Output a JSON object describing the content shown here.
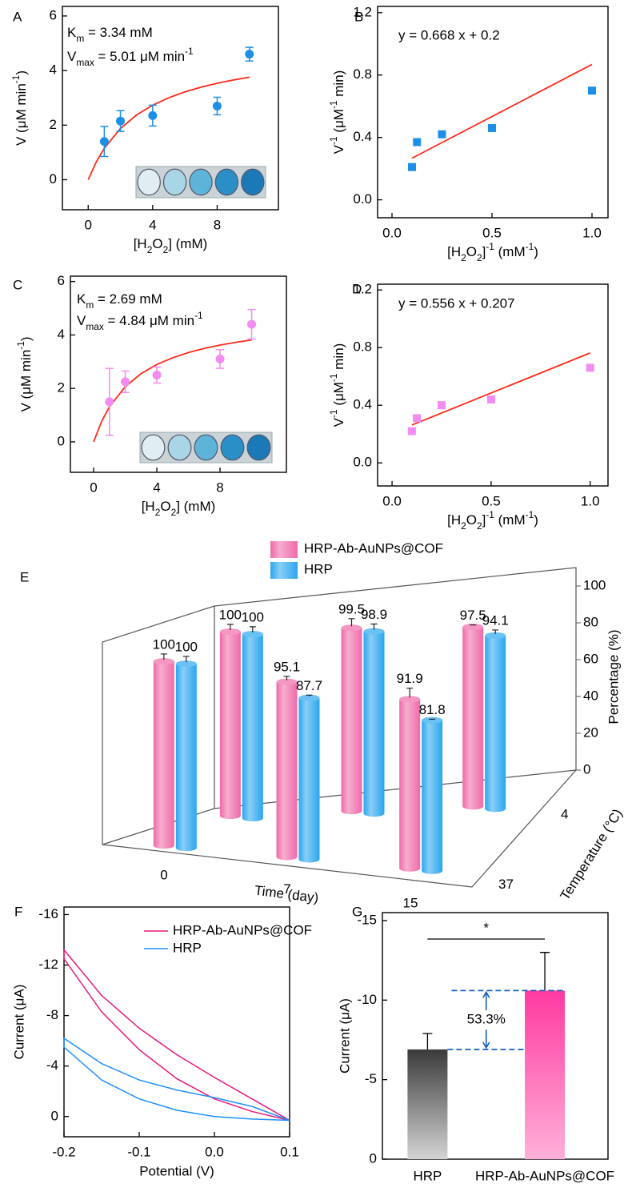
{
  "chart_data": [
    {
      "type": "scatter",
      "label": "A",
      "xlabel": [
        {
          "text": "[H"
        },
        {
          "text": "2",
          "style": "sub"
        },
        {
          "text": "O"
        },
        {
          "text": "2",
          "style": "sub"
        },
        {
          "text": "] (mM)"
        }
      ],
      "ylabel": [
        {
          "text": "V (μM min"
        },
        {
          "text": "-1",
          "style": "sup"
        },
        {
          "text": ")"
        }
      ],
      "annotations": [
        [
          {
            "text": "K"
          },
          {
            "text": "m",
            "style": "sub"
          },
          {
            "text": " = 3.34 mM"
          }
        ],
        [
          {
            "text": "V"
          },
          {
            "text": "max",
            "style": "sub"
          },
          {
            "text": " = 5.01 μM min"
          },
          {
            "text": "-1",
            "style": "sup"
          }
        ]
      ],
      "x": [
        1,
        2,
        4,
        8,
        10
      ],
      "series": [
        {
          "color": "#1e8fe6",
          "marker": "circle",
          "values": [
            1.4,
            2.15,
            2.35,
            2.7,
            4.6
          ],
          "errors": [
            0.55,
            0.38,
            0.38,
            0.32,
            0.25
          ]
        }
      ],
      "fit": {
        "color": "#ff2a1a",
        "x": [
          0,
          0.5,
          1,
          2,
          3,
          4,
          5,
          6,
          7,
          8,
          9,
          10
        ],
        "values": [
          0,
          0.652,
          1.154,
          1.876,
          2.371,
          2.73,
          3.004,
          3.218,
          3.392,
          3.534,
          3.654,
          3.756
        ]
      },
      "xlim": [
        -1.6,
        11.8
      ],
      "ylim": [
        -1.1,
        6.35
      ],
      "xticks": [
        0,
        4,
        8
      ],
      "yticks": [
        0,
        2,
        4,
        6
      ]
    },
    {
      "type": "scatter",
      "label": "B",
      "xlabel": [
        {
          "text": "[H"
        },
        {
          "text": "2",
          "style": "sub"
        },
        {
          "text": "O"
        },
        {
          "text": "2",
          "style": "sub"
        },
        {
          "text": "]"
        },
        {
          "text": "-1",
          "style": "sup"
        },
        {
          "text": " (mM"
        },
        {
          "text": "-1",
          "style": "sup"
        },
        {
          "text": ")"
        }
      ],
      "ylabel": [
        {
          "text": "V"
        },
        {
          "text": "-1",
          "style": "sup"
        },
        {
          "text": " (μM"
        },
        {
          "text": "-1",
          "style": "sup"
        },
        {
          "text": " min)"
        }
      ],
      "annotations": [
        "y = 0.668 x + 0.2"
      ],
      "x": [
        0.1,
        0.125,
        0.25,
        0.5,
        1
      ],
      "series": [
        {
          "color": "#1e8fe6",
          "marker": "square",
          "values": [
            0.21,
            0.37,
            0.42,
            0.46,
            0.7
          ]
        }
      ],
      "fit": {
        "color": "#ff2a1a",
        "x": [
          0.1,
          1
        ],
        "values": [
          0.2668,
          0.868
        ]
      },
      "xlim": [
        -0.072,
        1.08
      ],
      "ylim": [
        -0.115,
        1.24
      ],
      "xticks": [
        {
          "value": 0,
          "label": "0.0"
        },
        0.5,
        {
          "value": 1,
          "label": "1.0"
        }
      ],
      "yticks": [
        {
          "value": 0,
          "label": "0.0"
        },
        0.4,
        0.8,
        1.2
      ]
    },
    {
      "type": "scatter",
      "label": "C",
      "xlabel": [
        {
          "text": "[H"
        },
        {
          "text": "2",
          "style": "sub"
        },
        {
          "text": "O"
        },
        {
          "text": "2",
          "style": "sub"
        },
        {
          "text": "] (mM)"
        }
      ],
      "ylabel": [
        {
          "text": "V (μM min"
        },
        {
          "text": "-1",
          "style": "sup"
        },
        {
          "text": ")"
        }
      ],
      "annotations": [
        [
          {
            "text": "K"
          },
          {
            "text": "m",
            "style": "sub"
          },
          {
            "text": " = 2.69 mM"
          }
        ],
        [
          {
            "text": "V"
          },
          {
            "text": "max",
            "style": "sub"
          },
          {
            "text": " = 4.84 μM min"
          },
          {
            "text": "-1",
            "style": "sup"
          }
        ]
      ],
      "x": [
        1,
        2,
        4,
        8,
        10
      ],
      "series": [
        {
          "color": "#f28cf0",
          "marker": "circle",
          "values": [
            1.5,
            2.25,
            2.5,
            3.1,
            4.4
          ],
          "errors": [
            1.25,
            0.4,
            0.3,
            0.35,
            0.55
          ]
        }
      ],
      "fit": {
        "color": "#ff2a1a",
        "x": [
          0,
          0.5,
          1,
          2,
          3,
          4,
          5,
          6,
          7,
          8,
          9,
          10
        ],
        "values": [
          0,
          0.759,
          1.312,
          2.064,
          2.552,
          2.894,
          3.147,
          3.342,
          3.496,
          3.622,
          3.726,
          3.814
        ]
      },
      "xlim": [
        -1.47,
        12.2
      ],
      "ylim": [
        -1.14,
        6.2
      ],
      "xticks": [
        0,
        4,
        8
      ],
      "yticks": [
        0,
        2,
        4,
        6
      ]
    },
    {
      "type": "scatter",
      "label": "D",
      "xlabel": [
        {
          "text": "[H"
        },
        {
          "text": "2",
          "style": "sub"
        },
        {
          "text": "O"
        },
        {
          "text": "2",
          "style": "sub"
        },
        {
          "text": "]"
        },
        {
          "text": "-1",
          "style": "sup"
        },
        {
          "text": " (mM"
        },
        {
          "text": "-1",
          "style": "sup"
        },
        {
          "text": ")"
        }
      ],
      "ylabel": [
        {
          "text": "V"
        },
        {
          "text": "-1",
          "style": "sup"
        },
        {
          "text": " (μM"
        },
        {
          "text": "-1",
          "style": "sup"
        },
        {
          "text": " min)"
        }
      ],
      "annotations": [
        "y = 0.556 x + 0.207"
      ],
      "x": [
        0.1,
        0.125,
        0.25,
        0.5,
        1
      ],
      "series": [
        {
          "color": "#f28cf0",
          "marker": "square",
          "values": [
            0.22,
            0.31,
            0.4,
            0.44,
            0.66
          ]
        }
      ],
      "fit": {
        "color": "#ff2a1a",
        "x": [
          0.1,
          1
        ],
        "values": [
          0.2626,
          0.763
        ]
      },
      "xlim": [
        -0.073,
        1.09
      ],
      "ylim": [
        -0.16,
        1.24
      ],
      "xticks": [
        {
          "value": 0,
          "label": "0.0"
        },
        0.5,
        {
          "value": 1,
          "label": "1.0"
        }
      ],
      "yticks": [
        {
          "value": 0,
          "label": "0.0"
        },
        0.4,
        0.8,
        1.2
      ]
    },
    {
      "type": "bar3d",
      "label": "E",
      "categories": [
        "0",
        "7",
        "15"
      ],
      "xlabel": "Time (day)",
      "depth_categories": [
        "4",
        "37"
      ],
      "depth_label": "Temperature (°C)",
      "zlabel": "Percentage (%)",
      "zlim": [
        0,
        110
      ],
      "zticks": [
        0,
        20,
        40,
        60,
        80,
        100
      ],
      "series": [
        {
          "name": "HRP-Ab-AuNPs@COF",
          "color": "#ef6aa8",
          "label_color": "#e8157a",
          "values": [
            [
              100,
              99.5,
              97.5
            ],
            [
              100,
              95.1,
              91.9
            ]
          ],
          "errors": [
            [
              4,
              5,
              1
            ],
            [
              4,
              3,
              6
            ]
          ]
        },
        {
          "name": "HRP",
          "color": "#2aa6ee",
          "label_color": "#1a2ee6",
          "values": [
            [
              100,
              98.9,
              94.1
            ],
            [
              100,
              87.7,
              81.8
            ]
          ],
          "errors": [
            [
              4,
              4,
              3
            ],
            [
              4,
              1.5,
              0.5
            ]
          ]
        }
      ]
    },
    {
      "type": "line",
      "label": "F",
      "xlabel": "Potential (V)",
      "ylabel": "Current (μA)",
      "x": [
        0.1,
        0.05,
        0,
        -0.05,
        -0.1,
        -0.15,
        -0.2,
        -0.2,
        -0.15,
        -0.1,
        -0.05,
        0,
        0.05,
        0.1
      ],
      "series": [
        {
          "name": "HRP-Ab-AuNPs@COF",
          "color": "#e8197d",
          "values": [
            0.3,
            -0.4,
            -1.4,
            -3.0,
            -5.3,
            -8.3,
            -12.5,
            -13.2,
            -9.6,
            -7.0,
            -4.9,
            -3.1,
            -1.4,
            0.3
          ]
        },
        {
          "name": "HRP",
          "color": "#1e90ff",
          "values": [
            0.3,
            0.2,
            0.0,
            -0.5,
            -1.4,
            -2.9,
            -5.5,
            -6.2,
            -4.2,
            -2.9,
            -2.1,
            -1.5,
            -0.8,
            0.3
          ]
        }
      ],
      "xlim": [
        -0.2,
        0.1
      ],
      "ylim": [
        1.6,
        -16.6
      ],
      "xticks": [
        -0.2,
        -0.1,
        {
          "value": 0,
          "label": "0.0"
        },
        0.1
      ],
      "yticks": [
        -16,
        -12,
        -8,
        -4,
        0
      ]
    },
    {
      "type": "bar",
      "label": "G",
      "ylabel": "Current (μA)",
      "categories": [
        "HRP",
        "HRP-Ab-AuNPs@COF"
      ],
      "values": [
        -6.9,
        -10.6
      ],
      "errors": [
        1.0,
        2.4
      ],
      "colors": [
        [
          "#3a3a3a",
          "#d4d4d4"
        ],
        [
          "#ff3aa0",
          "#ffb0d8"
        ]
      ],
      "significance": "*",
      "increase_label": "53.3%",
      "ylim": [
        0,
        -15.5
      ],
      "yticks": [
        0,
        -5,
        -10,
        -15
      ]
    }
  ]
}
